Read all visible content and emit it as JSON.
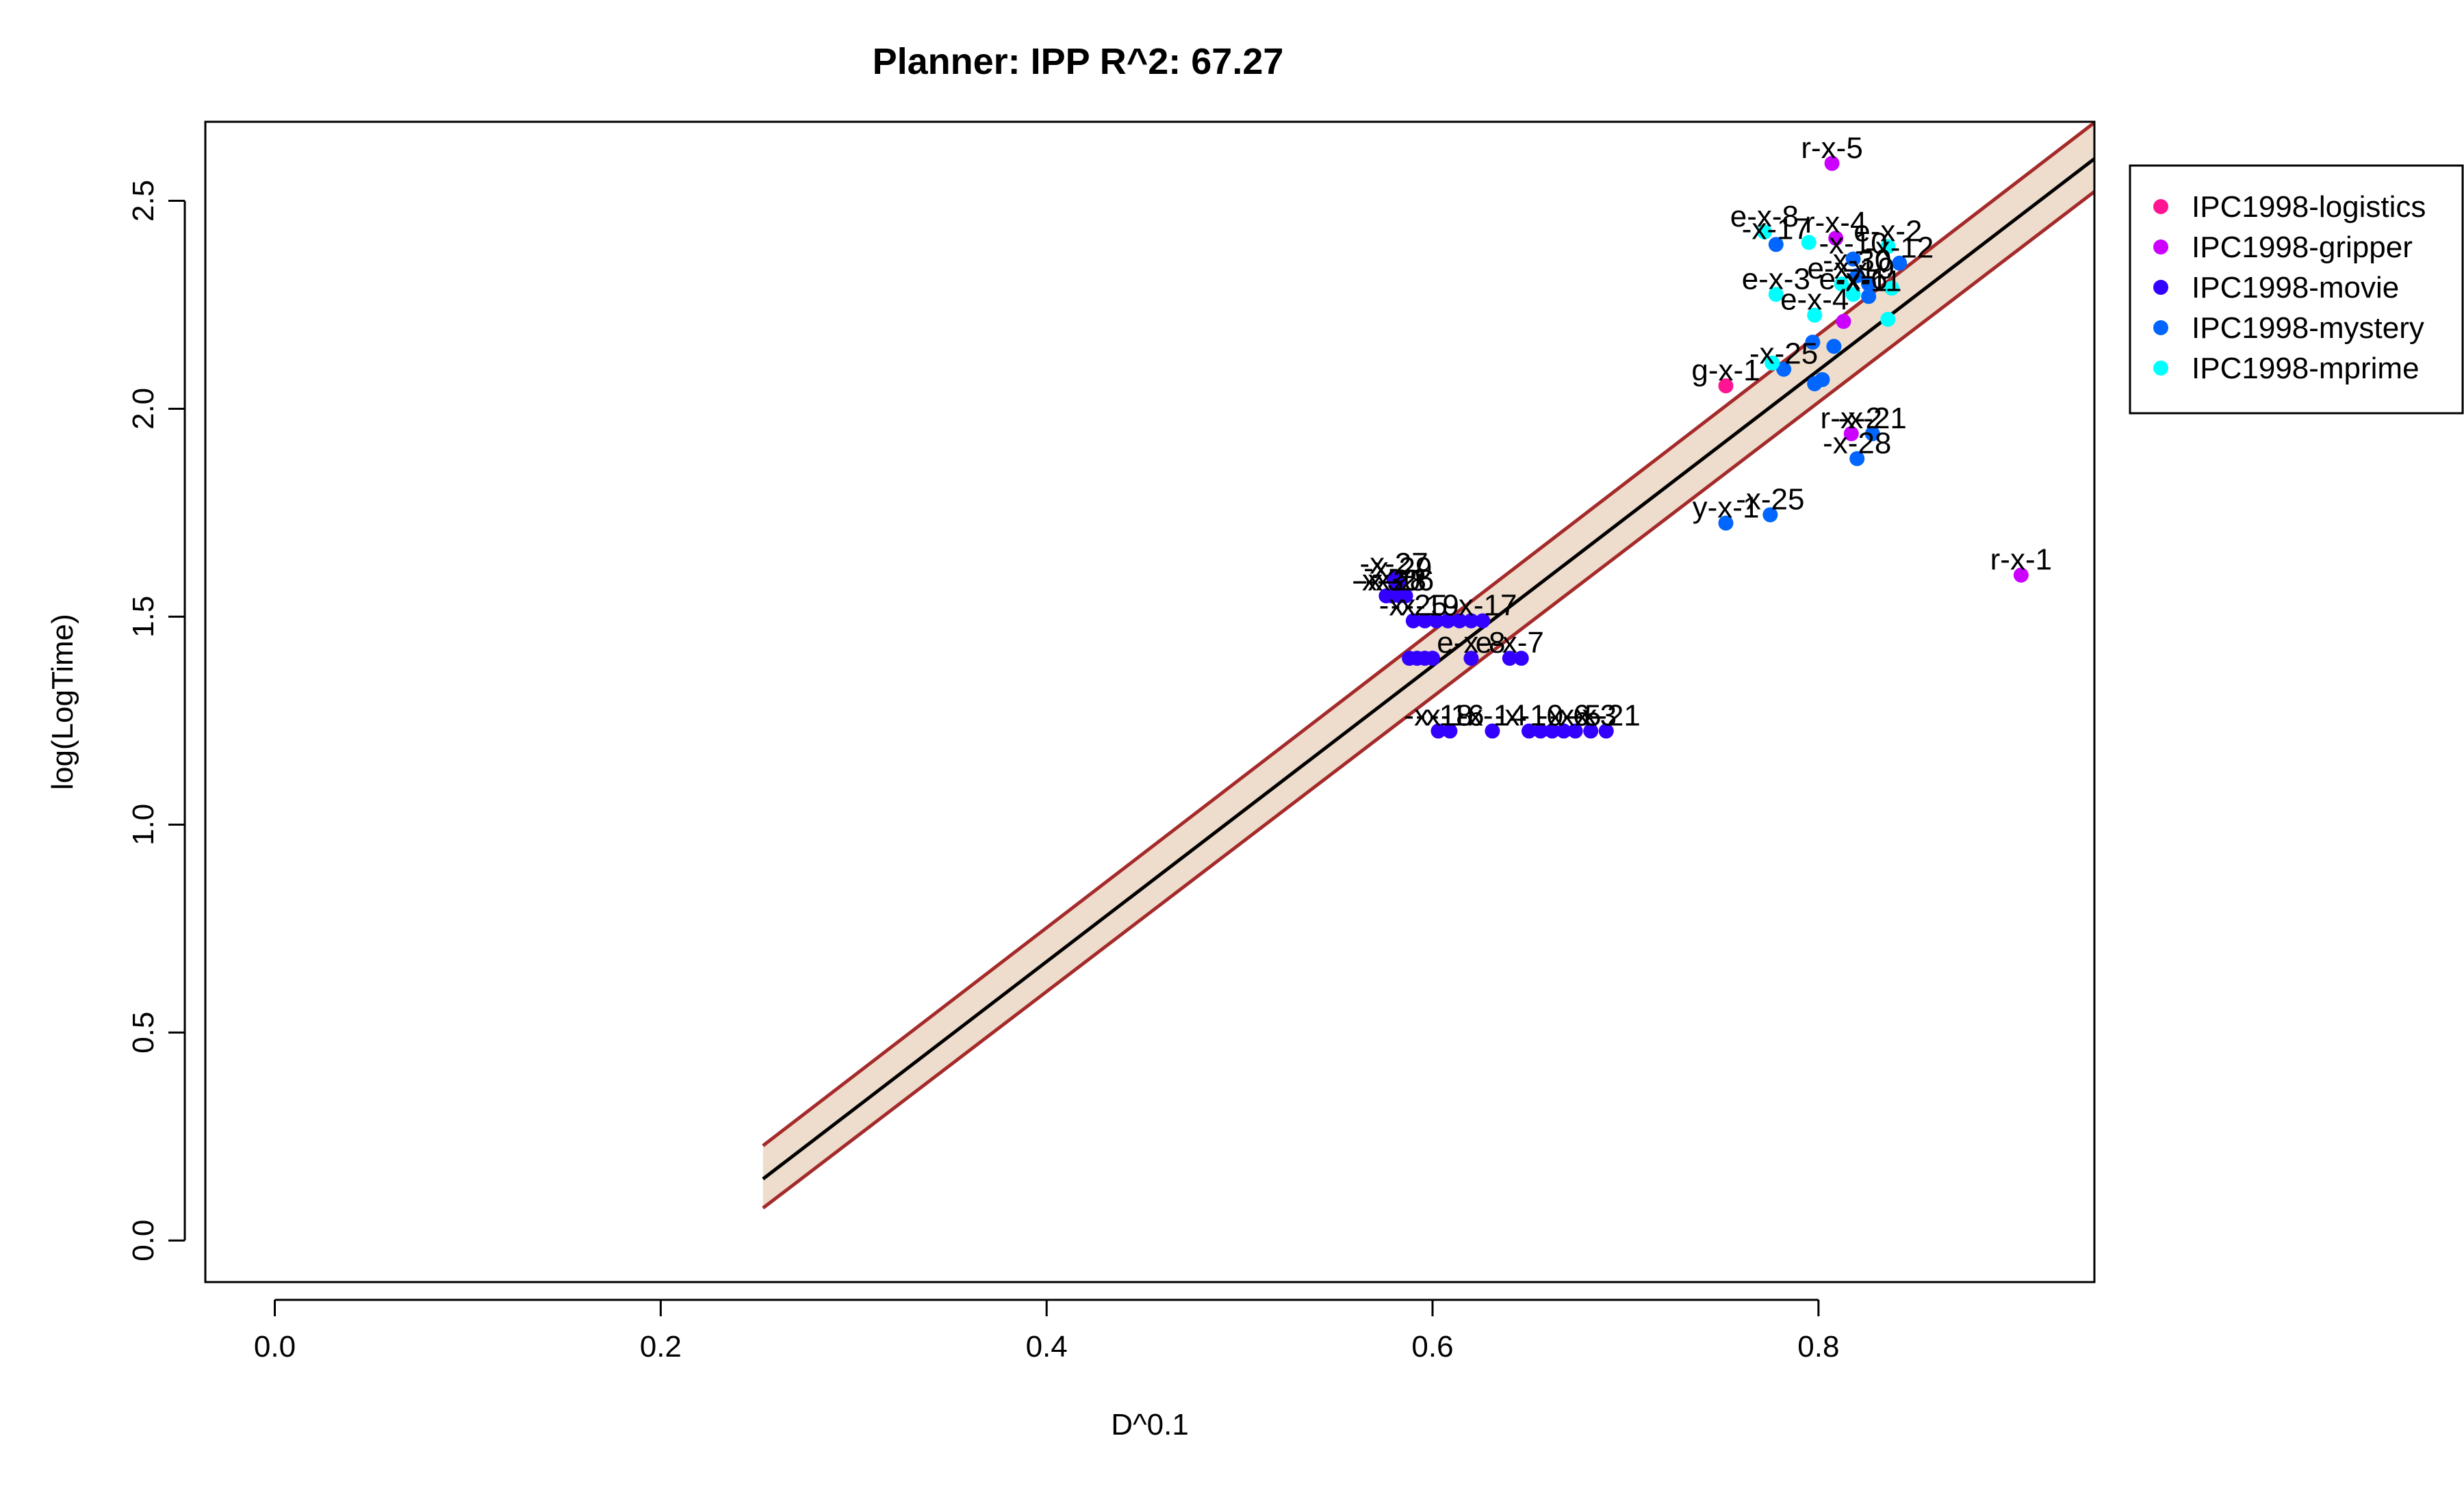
{
  "chart_data": {
    "type": "scatter",
    "title": "Planner: IPP R^2: 67.27",
    "xlabel": "D^0.1",
    "ylabel": "log(LogTime)",
    "xlim": [
      -0.036,
      0.943
    ],
    "ylim": [
      -0.1,
      2.69
    ],
    "xticks": [
      {
        "value": 0.0,
        "label": "0.0"
      },
      {
        "value": 0.2,
        "label": "0.2"
      },
      {
        "value": 0.4,
        "label": "0.4"
      },
      {
        "value": 0.6,
        "label": "0.6"
      },
      {
        "value": 0.8,
        "label": "0.8"
      }
    ],
    "yticks": [
      {
        "value": 0.0,
        "label": "0.0"
      },
      {
        "value": 0.5,
        "label": "0.5"
      },
      {
        "value": 1.0,
        "label": "1.0"
      },
      {
        "value": 1.5,
        "label": "1.5"
      },
      {
        "value": 2.0,
        "label": "2.0"
      },
      {
        "value": 2.5,
        "label": "2.5"
      }
    ],
    "grid": false,
    "legend_position": "outside-top-right",
    "regression": {
      "x_range": [
        0.253,
        0.943
      ],
      "fit": [
        0.148,
        2.601
      ],
      "upper": [
        0.228,
        2.688
      ],
      "lower": [
        0.078,
        2.522
      ],
      "fit_color": "#000000",
      "bound_color": "#A52A2A",
      "band_color": "#EEDDCC"
    },
    "series": [
      {
        "name": "IPC1998-logistics",
        "color": "#FF1493",
        "points": [
          {
            "x": 0.752,
            "y": 2.055,
            "label": "g-x-1"
          }
        ]
      },
      {
        "name": "IPC1998-gripper",
        "color": "#CC00FF",
        "points": [
          {
            "x": 0.807,
            "y": 2.59,
            "label": "r-x-5"
          },
          {
            "x": 0.809,
            "y": 2.41,
            "label": "r-x-4"
          },
          {
            "x": 0.813,
            "y": 2.21,
            "label": ""
          },
          {
            "x": 0.817,
            "y": 1.94,
            "label": "r-x-2"
          },
          {
            "x": 0.905,
            "y": 1.6,
            "label": "r-x-1"
          }
        ]
      },
      {
        "name": "IPC1998-movie",
        "color": "#3300FF",
        "points": [
          {
            "x": 0.58,
            "y": 1.59,
            "label": "-x-27"
          },
          {
            "x": 0.582,
            "y": 1.58,
            "label": "-x-29"
          },
          {
            "x": 0.576,
            "y": 1.55,
            "label": "-x-30"
          },
          {
            "x": 0.579,
            "y": 1.55,
            "label": "-x-28"
          },
          {
            "x": 0.583,
            "y": 1.55,
            "label": "-x-26"
          },
          {
            "x": 0.586,
            "y": 1.55,
            "label": ""
          },
          {
            "x": 0.59,
            "y": 1.49,
            "label": "-x-25"
          },
          {
            "x": 0.596,
            "y": 1.49,
            "label": "-x-19"
          },
          {
            "x": 0.602,
            "y": 1.49,
            "label": ""
          },
          {
            "x": 0.608,
            "y": 1.49,
            "label": ""
          },
          {
            "x": 0.614,
            "y": 1.49,
            "label": ""
          },
          {
            "x": 0.62,
            "y": 1.49,
            "label": ""
          },
          {
            "x": 0.626,
            "y": 1.49,
            "label": "-x-17"
          },
          {
            "x": 0.588,
            "y": 1.4,
            "label": ""
          },
          {
            "x": 0.592,
            "y": 1.4,
            "label": ""
          },
          {
            "x": 0.596,
            "y": 1.4,
            "label": ""
          },
          {
            "x": 0.6,
            "y": 1.4,
            "label": ""
          },
          {
            "x": 0.62,
            "y": 1.4,
            "label": "e-x-8"
          },
          {
            "x": 0.64,
            "y": 1.4,
            "label": "e-x-7"
          },
          {
            "x": 0.646,
            "y": 1.4,
            "label": ""
          },
          {
            "x": 0.603,
            "y": 1.225,
            "label": "-x-18"
          },
          {
            "x": 0.609,
            "y": 1.225,
            "label": "-x-16"
          },
          {
            "x": 0.631,
            "y": 1.225,
            "label": "-x-14"
          },
          {
            "x": 0.65,
            "y": 1.225,
            "label": "-x-10"
          },
          {
            "x": 0.656,
            "y": 1.225,
            "label": ""
          },
          {
            "x": 0.662,
            "y": 1.225,
            "label": ""
          },
          {
            "x": 0.668,
            "y": 1.225,
            "label": "-x-6"
          },
          {
            "x": 0.674,
            "y": 1.225,
            "label": "-x-5"
          },
          {
            "x": 0.682,
            "y": 1.225,
            "label": "-x-3"
          },
          {
            "x": 0.69,
            "y": 1.225,
            "label": "-x-21"
          }
        ]
      },
      {
        "name": "IPC1998-mystery",
        "color": "#0066FF",
        "points": [
          {
            "x": 0.778,
            "y": 2.395,
            "label": "-x-17"
          },
          {
            "x": 0.818,
            "y": 2.36,
            "label": "-x-10"
          },
          {
            "x": 0.842,
            "y": 2.35,
            "label": "-x-12"
          },
          {
            "x": 0.82,
            "y": 2.32,
            "label": "-x-30"
          },
          {
            "x": 0.826,
            "y": 2.3,
            "label": "-x-9"
          },
          {
            "x": 0.826,
            "y": 2.27,
            "label": "-x-11"
          },
          {
            "x": 0.797,
            "y": 2.16,
            "label": ""
          },
          {
            "x": 0.808,
            "y": 2.15,
            "label": ""
          },
          {
            "x": 0.782,
            "y": 2.095,
            "label": "-x-25"
          },
          {
            "x": 0.798,
            "y": 2.06,
            "label": ""
          },
          {
            "x": 0.802,
            "y": 2.07,
            "label": ""
          },
          {
            "x": 0.828,
            "y": 1.94,
            "label": "-x-21"
          },
          {
            "x": 0.82,
            "y": 1.88,
            "label": "-x-28"
          },
          {
            "x": 0.752,
            "y": 1.725,
            "label": "y-x-1"
          },
          {
            "x": 0.775,
            "y": 1.745,
            "label": "-x-25"
          }
        ]
      },
      {
        "name": "IPC1998-mprime",
        "color": "#00FFFF",
        "points": [
          {
            "x": 0.772,
            "y": 2.425,
            "label": "e-x-8"
          },
          {
            "x": 0.795,
            "y": 2.4,
            "label": ""
          },
          {
            "x": 0.836,
            "y": 2.39,
            "label": "e-x-2"
          },
          {
            "x": 0.812,
            "y": 2.3,
            "label": "e-x-1"
          },
          {
            "x": 0.778,
            "y": 2.275,
            "label": "e-x-3"
          },
          {
            "x": 0.818,
            "y": 2.275,
            "label": "e-x-6"
          },
          {
            "x": 0.838,
            "y": 2.29,
            "label": ""
          },
          {
            "x": 0.798,
            "y": 2.225,
            "label": "e-x-4"
          },
          {
            "x": 0.836,
            "y": 2.215,
            "label": ""
          },
          {
            "x": 0.776,
            "y": 2.11,
            "label": ""
          }
        ]
      }
    ]
  }
}
